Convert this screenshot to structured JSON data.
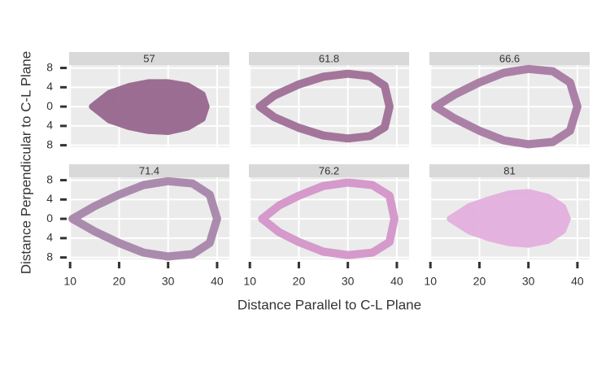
{
  "chart_data": {
    "type": "teardrop-facets",
    "x_label": "Distance Parallel to C-L Plane",
    "y_label": "Distance Perpendicular to C-L Plane",
    "xlim": [
      9.8,
      42.5
    ],
    "xticks": [
      10,
      20,
      30,
      40
    ],
    "ylim": [
      -8.4,
      8.6
    ],
    "yticks": [
      {
        "value": -8,
        "label": "8"
      },
      {
        "value": -4,
        "label": "4"
      },
      0,
      {
        "value": 4,
        "label": "4"
      },
      8
    ],
    "grid": true,
    "facets": [
      {
        "title": "57",
        "color": "#98678e",
        "filled": true,
        "x": [
          14.5,
          18,
          22,
          26,
          30,
          34,
          37,
          37.8,
          37,
          34,
          30,
          26,
          22,
          18
        ],
        "y": [
          0,
          2.8,
          4.2,
          5,
          5,
          4.3,
          2.5,
          0,
          -2.5,
          -4.3,
          -5.2,
          -5,
          -4.2,
          -2.8
        ]
      },
      {
        "title": "61.8",
        "color": "#a06f97",
        "filled": false,
        "x": [
          12,
          15,
          20,
          25,
          30,
          34.5,
          37.5,
          38.5,
          37.5,
          34.5,
          30,
          25,
          20,
          15
        ],
        "y": [
          0,
          2.3,
          4.6,
          6.2,
          6.8,
          6.3,
          4.3,
          0,
          -4.3,
          -6.1,
          -6.6,
          -6,
          -4.4,
          -2.2
        ]
      },
      {
        "title": "66.6",
        "color": "#a87aa2",
        "filled": false,
        "x": [
          11,
          15,
          20,
          25,
          30,
          35,
          38.5,
          40,
          38.5,
          35,
          30,
          25,
          20,
          15
        ],
        "y": [
          0,
          2.5,
          5,
          7,
          7.8,
          7.3,
          5,
          0,
          -5,
          -7.3,
          -7.8,
          -7,
          -5,
          -2.5
        ]
      },
      {
        "title": "71.4",
        "color": "#a886aa",
        "filled": false,
        "x": [
          10.5,
          15,
          20,
          25,
          30,
          35,
          38.5,
          40,
          38.5,
          35,
          30,
          25,
          20,
          15
        ],
        "y": [
          0,
          2.6,
          5,
          7,
          7.8,
          7.3,
          5,
          0,
          -5,
          -7.3,
          -7.8,
          -7,
          -5,
          -2.6
        ]
      },
      {
        "title": "76.2",
        "color": "#d495c9",
        "filled": false,
        "x": [
          12.5,
          16,
          20,
          25,
          30,
          35,
          38.5,
          39.5,
          38.5,
          35,
          30,
          25,
          20,
          16
        ],
        "y": [
          0,
          2.8,
          4.8,
          6.8,
          7.5,
          7,
          4.8,
          0,
          -4.8,
          -7,
          -7.5,
          -6.8,
          -4.8,
          -2.8
        ]
      },
      {
        "title": "81",
        "color": "#e3b0de",
        "filled": true,
        "x": [
          14,
          18,
          22,
          26,
          30,
          34,
          37,
          38,
          37,
          34,
          30,
          26,
          22,
          18
        ],
        "y": [
          0,
          2.6,
          4,
          5.2,
          5.5,
          4.5,
          2.5,
          0,
          -2.5,
          -4.5,
          -5.3,
          -5,
          -4,
          -2.6
        ]
      }
    ]
  }
}
